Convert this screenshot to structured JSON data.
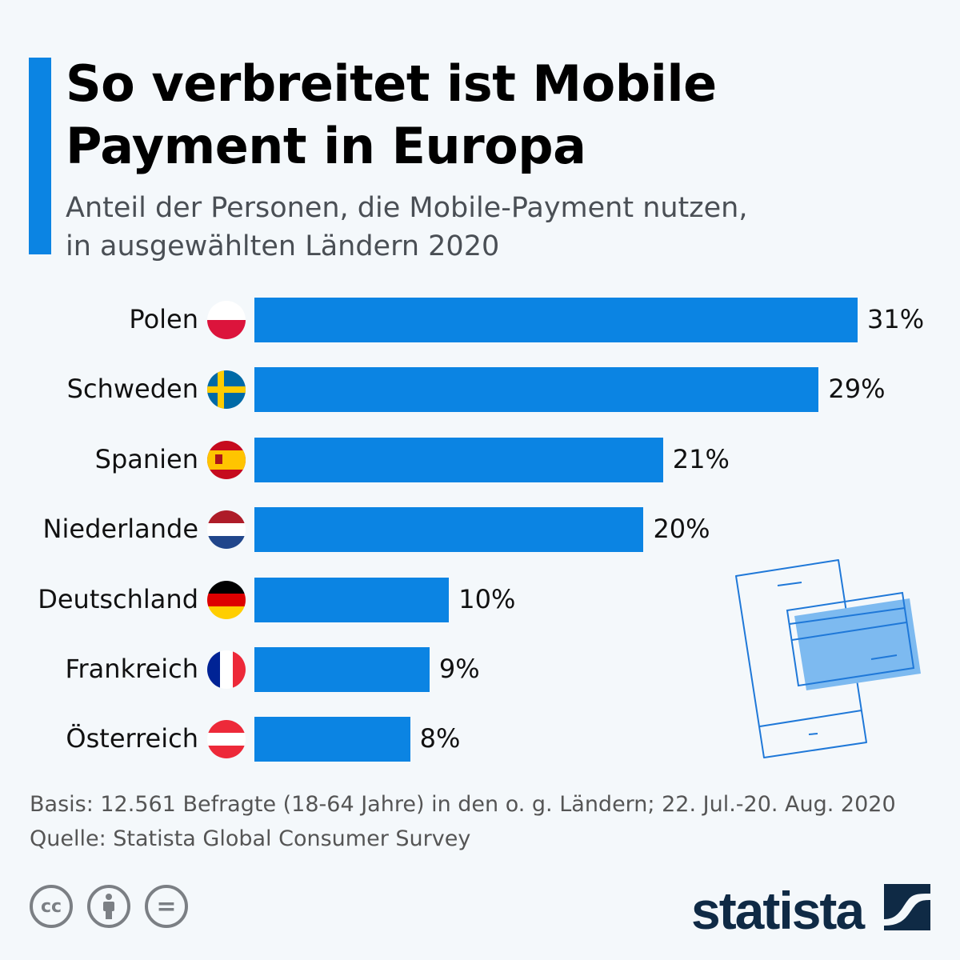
{
  "header": {
    "title": "So verbreitet ist Mobile Payment in Europa",
    "subtitle_line1": "Anteil der Personen, die Mobile-Payment nutzen,",
    "subtitle_line2": "in ausgewählten Ländern 2020"
  },
  "chart_data": {
    "type": "bar",
    "orientation": "horizontal",
    "categories": [
      "Polen",
      "Schweden",
      "Spanien",
      "Niederlande",
      "Deutschland",
      "Frankreich",
      "Österreich"
    ],
    "values": [
      31,
      29,
      21,
      20,
      10,
      9,
      8
    ],
    "value_labels": [
      "31%",
      "29%",
      "21%",
      "20%",
      "10%",
      "9%",
      "8%"
    ],
    "flags": [
      "poland-flag",
      "sweden-flag",
      "spain-flag",
      "netherlands-flag",
      "germany-flag",
      "france-flag",
      "austria-flag"
    ],
    "bar_color": "#0b84e3",
    "unit": "%",
    "grid": false
  },
  "footer": {
    "basis": "Basis: 12.561 Befragte (18-64 Jahre) in den o. g. Ländern; 22. Jul.-20. Aug. 2020",
    "source": "Quelle: Statista Global Consumer Survey",
    "cc_icons": [
      "cc-icon",
      "by-icon",
      "nd-icon"
    ],
    "cc_label": "cc",
    "nd_label": "="
  },
  "logo": {
    "text": "statista"
  }
}
